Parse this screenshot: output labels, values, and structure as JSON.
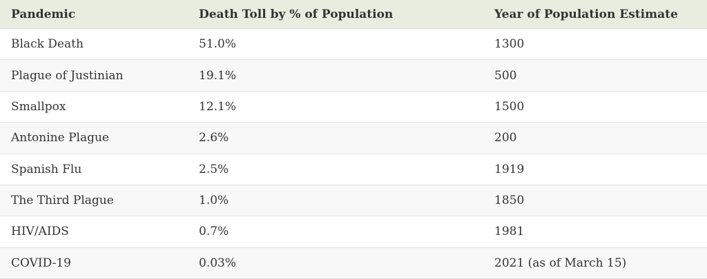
{
  "table": {
    "columns": [
      "Pandemic",
      "Death Toll by % of Population",
      "Year of Population Estimate"
    ],
    "rows": [
      [
        "Black Death",
        "51.0%",
        "1300"
      ],
      [
        "Plague of Justinian",
        "19.1%",
        "500"
      ],
      [
        "Smallpox",
        "12.1%",
        "1500"
      ],
      [
        "Antonine Plague",
        "2.6%",
        "200"
      ],
      [
        "Spanish Flu",
        "2.5%",
        "1919"
      ],
      [
        "The Third Plague",
        "1.0%",
        "1850"
      ],
      [
        "HIV/AIDS",
        "0.7%",
        "1981"
      ],
      [
        "COVID-19",
        "0.03%",
        "2021 (as of March 15)"
      ]
    ]
  }
}
